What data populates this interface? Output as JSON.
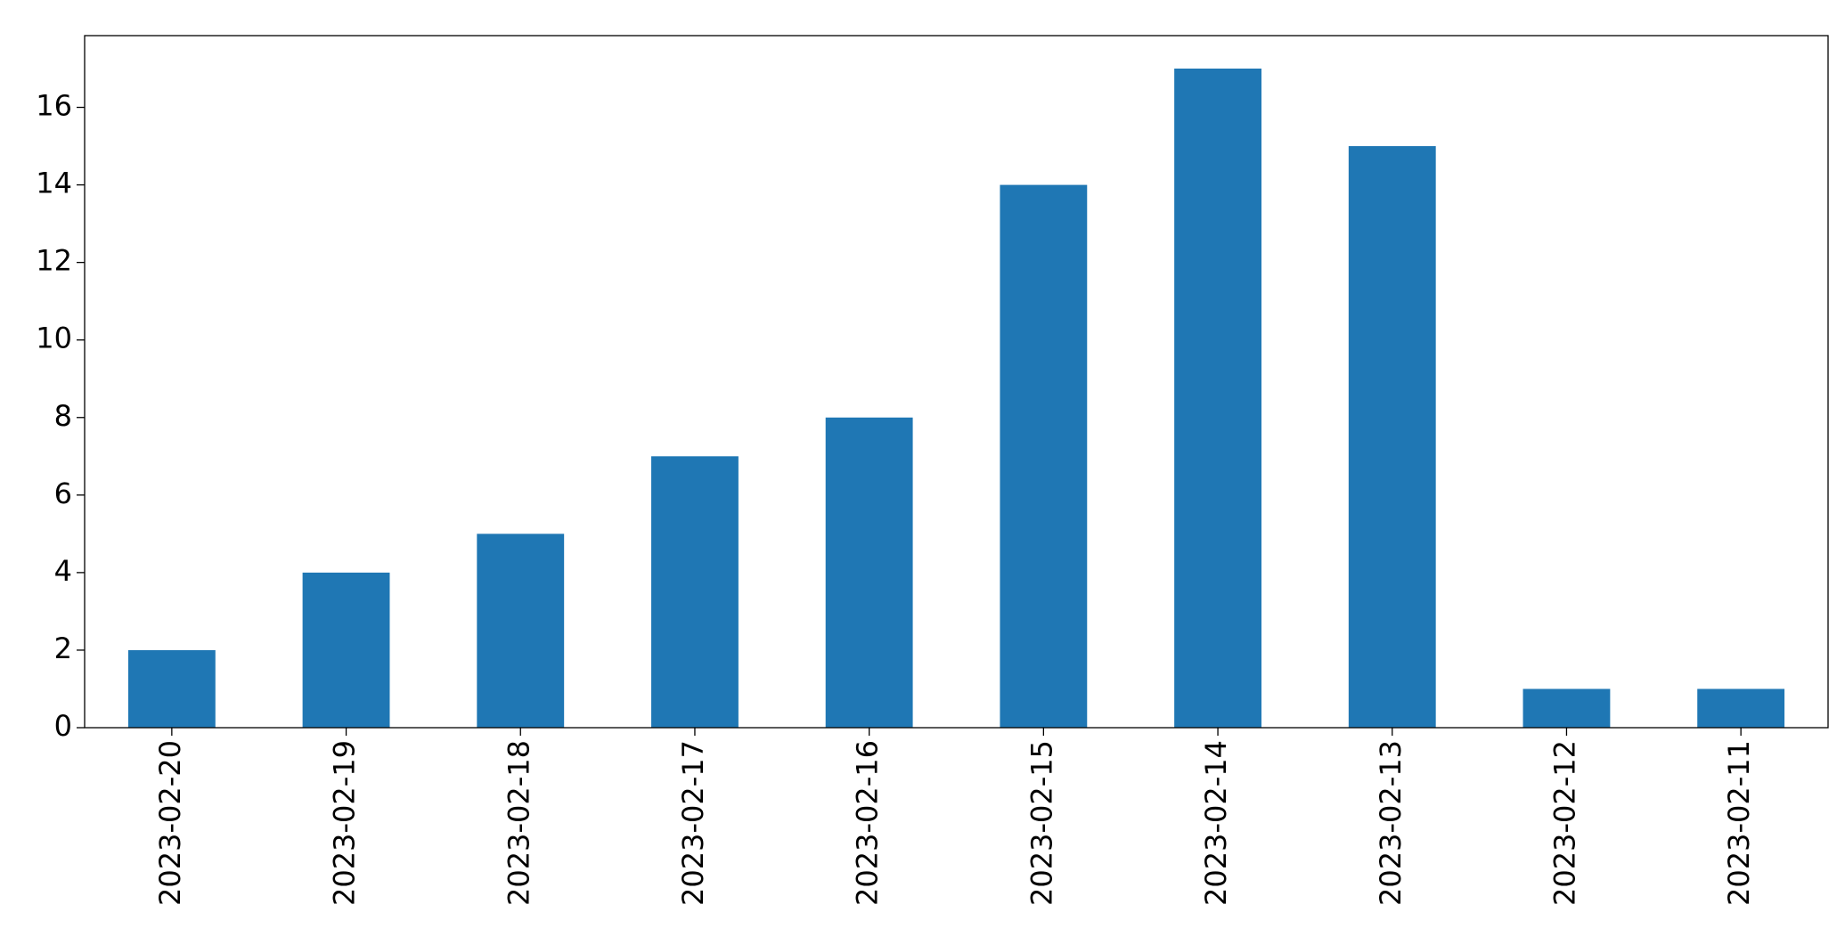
{
  "chart_data": {
    "type": "bar",
    "categories": [
      "2023-02-20",
      "2023-02-19",
      "2023-02-18",
      "2023-02-17",
      "2023-02-16",
      "2023-02-15",
      "2023-02-14",
      "2023-02-13",
      "2023-02-12",
      "2023-02-11"
    ],
    "values": [
      2,
      4,
      5,
      7,
      8,
      14,
      17,
      15,
      1,
      1
    ],
    "color": "#1f77b4",
    "ylim": [
      0,
      17.85
    ],
    "yticks": [
      0,
      2,
      4,
      6,
      8,
      10,
      12,
      14,
      16
    ],
    "grid": false
  }
}
